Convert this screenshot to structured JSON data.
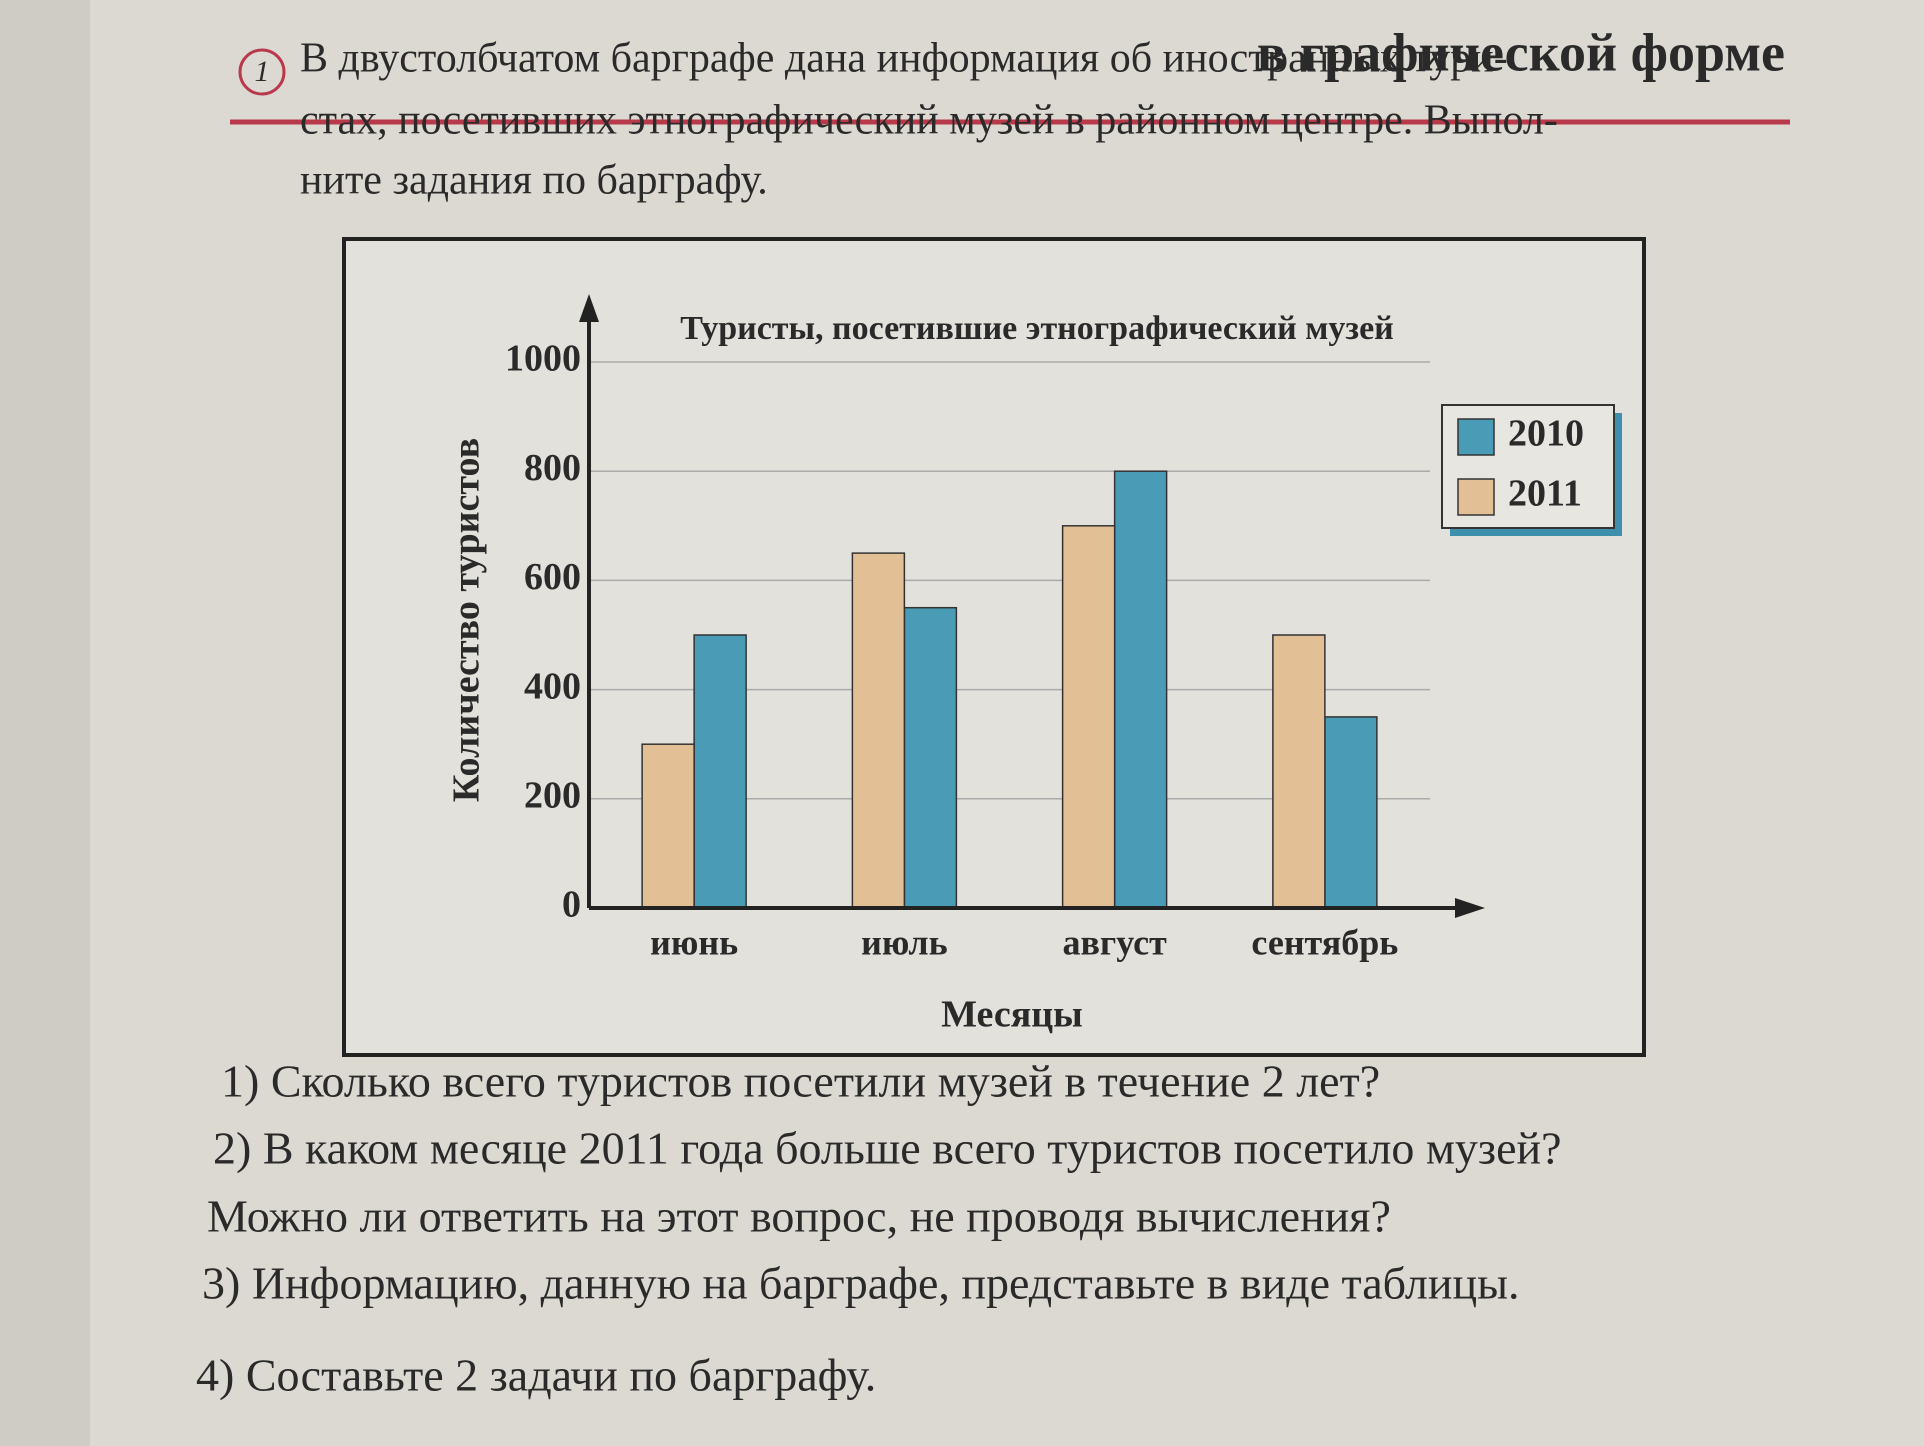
{
  "header": {
    "title": "в графической форме"
  },
  "task": {
    "number": "1",
    "lines": [
      "В двустолбчатом барграфе дана информация об иностранных тури-",
      "стах, посетивших этнографический музей в районном центре. Выпол-",
      "ните задания по барграфу."
    ]
  },
  "chart_data": {
    "type": "bar",
    "title": "Туристы, посетившие этнографический музей",
    "x_label": "Месяцы",
    "y_label": "Количество туристов",
    "categories": [
      "июнь",
      "июль",
      "август",
      "сентябрь"
    ],
    "series": [
      {
        "name": "2010",
        "color": "#4a9bb5",
        "values": [
          500,
          550,
          800,
          350
        ]
      },
      {
        "name": "2011",
        "color": "#e3bf96",
        "values": [
          300,
          650,
          700,
          500
        ]
      }
    ],
    "ylim": [
      0,
      1000
    ],
    "yticks": [
      0,
      200,
      400,
      600,
      800,
      1000
    ],
    "grid": true,
    "legend": "upper right"
  },
  "questions": [
    "1) Сколько всего туристов посетили музей в течение 2 лет?",
    "2) В каком месяце 2011 года больше всего туристов посетило музей?",
    "Можно ли ответить на этот вопрос,  не проводя вычисления?",
    "3)  Информацию, данную на барграфе,  представьте в виде таблицы.",
    "4) Составьте 2 задачи по барграфу."
  ]
}
